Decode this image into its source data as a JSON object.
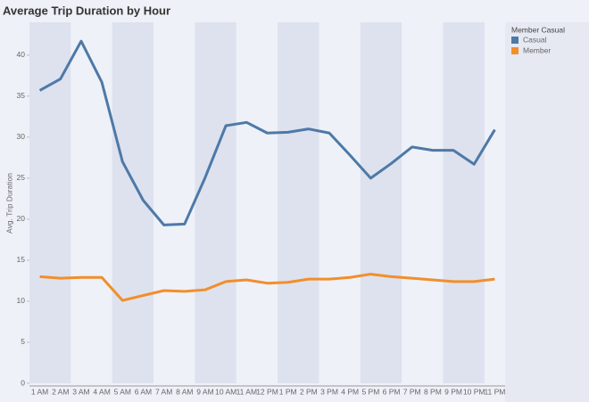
{
  "chart_data": {
    "type": "line",
    "title": "Average Trip Duration by Hour",
    "y_label": "Avg. Trip Duration",
    "legend_title": "Member Casual",
    "categories": [
      "1 AM",
      "2 AM",
      "3 AM",
      "4 AM",
      "5 AM",
      "6 AM",
      "7 AM",
      "8 AM",
      "9 AM",
      "10 AM",
      "11 AM",
      "12 PM",
      "1 PM",
      "2 PM",
      "3 PM",
      "4 PM",
      "5 PM",
      "6 PM",
      "7 PM",
      "8 PM",
      "9 PM",
      "10 PM",
      "11 PM"
    ],
    "series": [
      {
        "name": "Casual",
        "color": "#4e79a7",
        "values": [
          35.7,
          37.1,
          41.7,
          36.7,
          27.0,
          22.3,
          19.3,
          19.4,
          25.1,
          31.4,
          31.8,
          30.5,
          30.6,
          31.0,
          30.5,
          27.8,
          25.0,
          26.8,
          28.8,
          28.4,
          28.4,
          26.7,
          30.9
        ]
      },
      {
        "name": "Member",
        "color": "#f28e2b",
        "values": [
          13.0,
          12.8,
          12.9,
          12.9,
          10.1,
          10.7,
          11.3,
          11.2,
          11.4,
          12.4,
          12.6,
          12.2,
          12.3,
          12.7,
          12.7,
          12.9,
          13.3,
          13.0,
          12.8,
          12.6,
          12.4,
          12.4,
          12.7
        ]
      }
    ],
    "ylim": [
      0,
      44
    ],
    "yticks": [
      0,
      5,
      10,
      15,
      20,
      25,
      30,
      35,
      40
    ],
    "legend": "right"
  }
}
